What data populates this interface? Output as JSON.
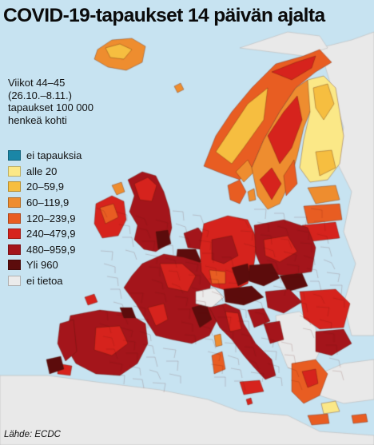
{
  "title": "COVID-19-tapaukset 14 päivän ajalta",
  "period_lines": [
    "Viikot 44–45",
    "(26.10.–8.11.)",
    "tapaukset 100 000",
    "henkeä kohti"
  ],
  "legend": [
    {
      "label": "ei tapauksia",
      "color": "#1a86a6"
    },
    {
      "label": "alle 20",
      "color": "#fbe887"
    },
    {
      "label": "20–59,9",
      "color": "#f6be40"
    },
    {
      "label": "60–119,9",
      "color": "#ee8d2f"
    },
    {
      "label": "120–239,9",
      "color": "#e85d22"
    },
    {
      "label": "240–479,9",
      "color": "#d6231d"
    },
    {
      "label": "480–959,9",
      "color": "#a4151b"
    },
    {
      "label": "Yli 960",
      "color": "#5c0c0c"
    },
    {
      "label": "ei tietoa",
      "color": "#ebebeb"
    }
  ],
  "source": "Lähde: ECDC",
  "colors": {
    "sea": "#c7e3f1",
    "non_eu_land": "#e9e9e9",
    "border": "#8a2a1a"
  }
}
